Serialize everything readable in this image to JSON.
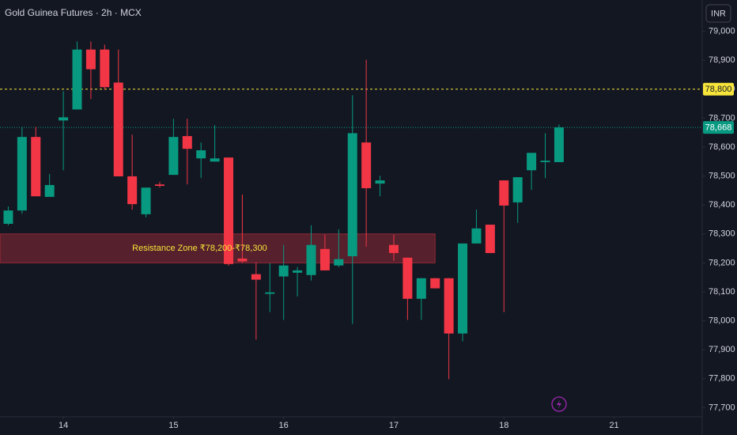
{
  "chart_data": {
    "type": "candlestick",
    "title": "Gold Guinea Futures · 2h · MCX",
    "currency": "INR",
    "x": [
      0,
      1,
      2,
      3,
      4,
      5,
      6,
      7,
      8,
      9,
      10,
      11,
      12,
      13,
      14,
      15,
      16,
      17,
      18,
      19,
      20,
      21,
      22,
      23,
      24,
      25,
      26,
      27,
      28,
      29,
      30,
      31,
      32,
      33,
      34,
      35,
      36,
      37,
      38,
      39,
      40
    ],
    "open": [
      78335,
      78381,
      78635,
      78428,
      78692,
      78730,
      78937,
      78937,
      78823,
      78499,
      78368,
      78471,
      78504,
      78638,
      78561,
      78550,
      78564,
      78215,
      78161,
      78093,
      78153,
      78166,
      78158,
      78248,
      78191,
      78223,
      78616,
      78474,
      78262,
      78218,
      78076,
      78147,
      78147,
      77956,
      78267,
      78332,
      78485,
      78409,
      78520,
      78548,
      78548
    ],
    "high": [
      78395,
      78670,
      78670,
      78507,
      78793,
      78965,
      78965,
      78954,
      78937,
      78643,
      78460,
      78480,
      78698,
      78698,
      78616,
      78676,
      78564,
      78436,
      78202,
      78199,
      78262,
      78186,
      78330,
      78297,
      78316,
      78779,
      78902,
      78501,
      78297,
      78218,
      78147,
      78147,
      78147,
      78267,
      78384,
      78332,
      78485,
      78496,
      78580,
      78648,
      78678
    ],
    "low": [
      78330,
      78370,
      78430,
      78428,
      78520,
      78730,
      78766,
      78798,
      78499,
      78384,
      78357,
      78460,
      78504,
      78471,
      78493,
      78550,
      78190,
      78200,
      77935,
      78030,
      78003,
      78084,
      78139,
      78174,
      78185,
      77989,
      78256,
      78430,
      78207,
      78003,
      78003,
      78112,
      77798,
      77929,
      78267,
      78234,
      78030,
      78338,
      78452,
      78493,
      78548
    ],
    "close": [
      78381,
      78635,
      78430,
      78469,
      78703,
      78937,
      78869,
      78807,
      78499,
      78403,
      78460,
      78466,
      78635,
      78594,
      78589,
      78561,
      78196,
      78205,
      78142,
      78098,
      78191,
      78174,
      78262,
      78174,
      78213,
      78648,
      78458,
      78485,
      78234,
      78076,
      78147,
      78112,
      77956,
      78267,
      78319,
      78234,
      78398,
      78496,
      78580,
      78553,
      78668
    ],
    "up_color": "#089981",
    "down_color": "#f23645",
    "xlim": [
      -0.6,
      50.4
    ],
    "xticks": [
      {
        "value": 4,
        "label": "14"
      },
      {
        "value": 12,
        "label": "15"
      },
      {
        "value": 20,
        "label": "16"
      },
      {
        "value": 28,
        "label": "17"
      },
      {
        "value": 36,
        "label": "18"
      },
      {
        "value": 44,
        "label": "21"
      }
    ],
    "ylim": [
      77660,
      79100
    ],
    "yticks": [
      {
        "value": 77700,
        "label": "77,700"
      },
      {
        "value": 77800,
        "label": "77,800"
      },
      {
        "value": 77900,
        "label": "77,900"
      },
      {
        "value": 78000,
        "label": "78,000"
      },
      {
        "value": 78100,
        "label": "78,100"
      },
      {
        "value": 78200,
        "label": "78,200"
      },
      {
        "value": 78300,
        "label": "78,300"
      },
      {
        "value": 78400,
        "label": "78,400"
      },
      {
        "value": 78500,
        "label": "78,500"
      },
      {
        "value": 78600,
        "label": "78,600"
      },
      {
        "value": 78700,
        "label": "78,700"
      },
      {
        "value": 78800,
        "label": "78,800"
      },
      {
        "value": 78900,
        "label": "78,900"
      },
      {
        "value": 79000,
        "label": "79,000"
      }
    ],
    "price_lines": [
      {
        "value": 78800,
        "label": "78,800",
        "color": "#f7e53b",
        "dash": "3 3",
        "text_color": "#131722"
      },
      {
        "value": 78668,
        "label": "78,668",
        "color": "#089981",
        "dash": "1 2",
        "text_color": "#ffffff"
      }
    ],
    "zone": {
      "low": 78200,
      "high": 78300,
      "label": "Resistance Zone ₹78,200-₹78,300",
      "color": "#f23645",
      "text_color": "#f7e53b",
      "label_x": 9
    }
  }
}
